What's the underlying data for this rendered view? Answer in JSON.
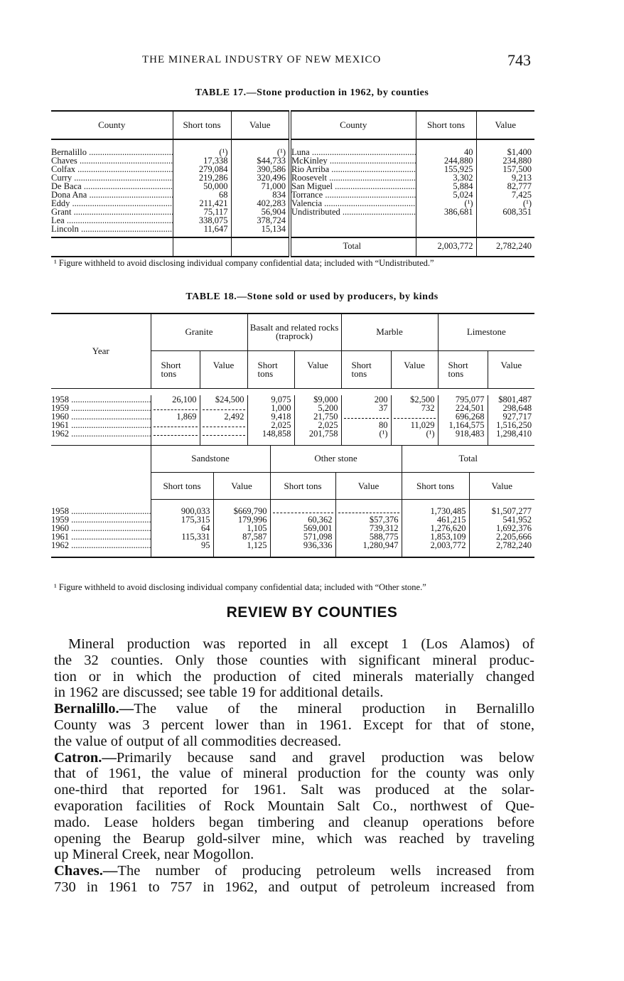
{
  "header": {
    "running_title": "THE MINERAL INDUSTRY OF NEW MEXICO",
    "page_number": "743"
  },
  "table17": {
    "title": "TABLE 17.—Stone production in 1962, by counties",
    "columns": [
      "County",
      "Short tons",
      "Value",
      "County",
      "Short tons",
      "Value"
    ],
    "left": [
      [
        "Bernalillo",
        "(¹)",
        "(¹)"
      ],
      [
        "Chaves",
        "17,338",
        "$44,733"
      ],
      [
        "Colfax",
        "279,084",
        "390,586"
      ],
      [
        "Curry",
        "219,286",
        "320,496"
      ],
      [
        "De Baca",
        "50,000",
        "71,000"
      ],
      [
        "Dona Ana",
        "68",
        "834"
      ],
      [
        "Eddy",
        "211,421",
        "402,283"
      ],
      [
        "Grant",
        "75,117",
        "56,904"
      ],
      [
        "Lea",
        "338,075",
        "378,724"
      ],
      [
        "Lincoln",
        "11,647",
        "15,134"
      ]
    ],
    "right": [
      [
        "Luna",
        "40",
        "$1,400"
      ],
      [
        "McKinley",
        "244,880",
        "234,880"
      ],
      [
        "Rio Arriba",
        "155,925",
        "157,500"
      ],
      [
        "Roosevelt",
        "3,302",
        "9,213"
      ],
      [
        "San Miguel",
        "5,884",
        "82,777"
      ],
      [
        "Torrance",
        "5,024",
        "7,425"
      ],
      [
        "Valencia",
        "(¹)",
        "(¹)"
      ],
      [
        "Undistributed",
        "386,681",
        "608,351"
      ]
    ],
    "total": [
      "Total",
      "2,003,772",
      "2,782,240"
    ],
    "footnote": "¹ Figure withheld to avoid disclosing individual company confidential data; included with “Undistributed.”"
  },
  "table18": {
    "title": "TABLE 18.—Stone sold or used by producers, by kinds",
    "year_label": "Year",
    "groups1": [
      "Granite",
      "Basalt and related rocks (traprock)",
      "Marble",
      "Limestone"
    ],
    "groups2": [
      "Sandstone",
      "Other stone",
      "Total"
    ],
    "sub_short": "Short tons",
    "sub_value": "Value",
    "rows1": [
      [
        "1958",
        "26,100",
        "$24,500",
        "9,075",
        "$9,000",
        "200",
        "$2,500",
        "795,077",
        "$801,487"
      ],
      [
        "1959",
        "",
        "",
        "1,000",
        "5,200",
        "37",
        "732",
        "224,501",
        "298,648"
      ],
      [
        "1960",
        "1,869",
        "2,492",
        "9,418",
        "21,750",
        "",
        "",
        "696,268",
        "927,717"
      ],
      [
        "1961",
        "",
        "",
        "2,025",
        "2,025",
        "80",
        "11,029",
        "1,164,575",
        "1,516,250"
      ],
      [
        "1962",
        "",
        "",
        "148,858",
        "201,758",
        "(¹)",
        "(¹)",
        "918,483",
        "1,298,410"
      ]
    ],
    "rows2": [
      [
        "1958",
        "900,033",
        "$669,790",
        "",
        "",
        "1,730,485",
        "$1,507,277"
      ],
      [
        "1959",
        "175,315",
        "179,996",
        "60,362",
        "$57,376",
        "461,215",
        "541,952"
      ],
      [
        "1960",
        "64",
        "1,105",
        "569,001",
        "739,312",
        "1,276,620",
        "1,692,376"
      ],
      [
        "1961",
        "115,331",
        "87,587",
        "571,098",
        "588,775",
        "1,853,109",
        "2,205,666"
      ],
      [
        "1962",
        "95",
        "1,125",
        "936,336",
        "1,280,947",
        "2,003,772",
        "2,782,240"
      ]
    ],
    "footnote": "¹ Figure withheld to avoid disclosing individual company confidential data; included with “Other stone.”"
  },
  "review": {
    "heading": "REVIEW BY COUNTIES",
    "paragraphs": [
      {
        "lead": "",
        "lines": [
          "Mineral production was reported in all except 1 (Los Alamos) of",
          "the 32 counties. Only those counties with significant mineral produc-",
          "tion or in which the production of cited minerals materially changed",
          "in 1962 are discussed; see table 19 for additional details."
        ]
      },
      {
        "lead": "Bernalillo.—",
        "lines": [
          "The value of the mineral production in Bernalillo",
          "County was 3 percent lower than in 1961. Except for that of stone,",
          "the value of output of all commodities decreased."
        ]
      },
      {
        "lead": "Catron.—",
        "lines": [
          "Primarily because sand and gravel production was below",
          "that of 1961, the value of mineral production for the county was only",
          "one-third that reported for 1961. Salt was produced at the solar-",
          "evaporation facilities of Rock Mountain Salt Co., northwest of Que-",
          "mado. Lease holders began timbering and cleanup operations before",
          "opening the Bearup gold-silver mine, which was reached by traveling",
          "up Mineral Creek, near Mogollon."
        ]
      },
      {
        "lead": "Chaves.—",
        "lines": [
          "The number of producing petroleum wells increased from",
          "730 in 1961 to 757 in 1962, and output of petroleum increased from"
        ],
        "continues": true
      }
    ]
  }
}
